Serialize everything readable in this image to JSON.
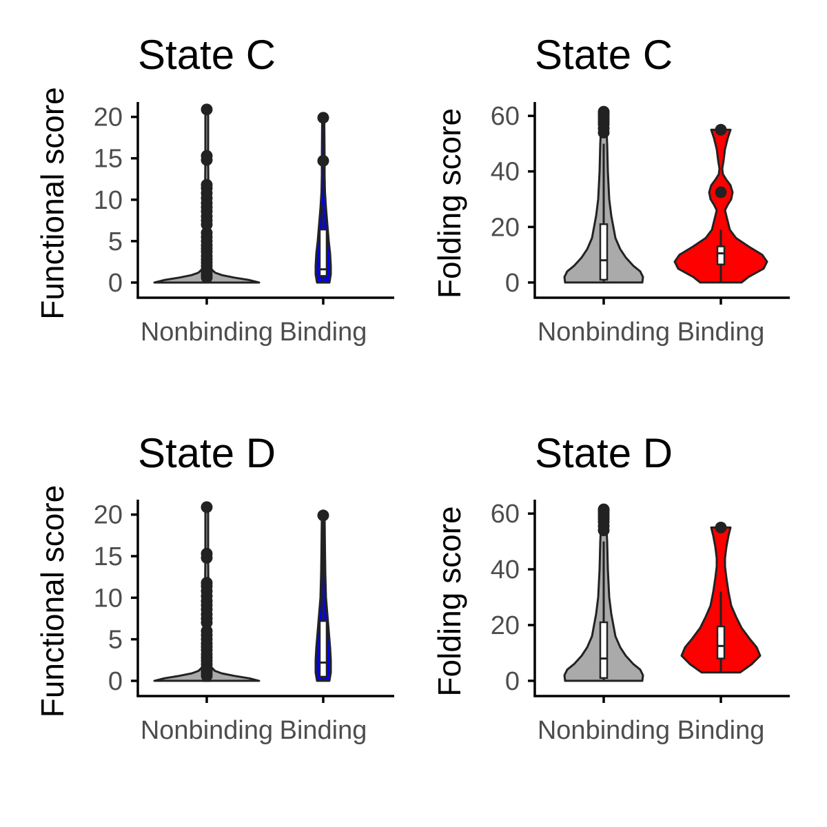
{
  "chart_data": [
    {
      "type": "violin",
      "title": "State C",
      "xlabel": "",
      "ylabel": "Functional score",
      "ylim": [
        -1,
        21.8
      ],
      "yticks": [
        0,
        5,
        10,
        15,
        20
      ],
      "categories": [
        "Nonbinding",
        "Binding"
      ],
      "groups": [
        {
          "category": "Nonbinding",
          "fill": "#aaaaaa",
          "min": 0,
          "q1": 0,
          "median": 0,
          "q3": 0.2,
          "whisker_high": 0.5,
          "max": 20.9,
          "density": [
            [
              0,
              76
            ],
            [
              0.3,
              62
            ],
            [
              0.6,
              40
            ],
            [
              0.9,
              22
            ],
            [
              1.2,
              12
            ],
            [
              1.6,
              7
            ],
            [
              2.5,
              4
            ],
            [
              5,
              3
            ],
            [
              10,
              2.5
            ],
            [
              15,
              2
            ],
            [
              20.9,
              2
            ]
          ],
          "outliers": [
            0.6,
            0.9,
            1.2,
            1.6,
            2.0,
            2.4,
            2.8,
            3.2,
            3.7,
            4.1,
            4.5,
            5.0,
            5.5,
            6.0,
            7.0,
            7.5,
            8.0,
            8.6,
            9.1,
            9.6,
            10.2,
            10.8,
            11.4,
            11.8,
            14.8,
            15.3,
            20.9
          ]
        },
        {
          "category": "Binding",
          "fill": "#0000ff",
          "min": 0,
          "q1": 0.8,
          "median": 1.6,
          "q3": 6.4,
          "whisker_high": 9.4,
          "max": 19.9,
          "density": [
            [
              0,
              9
            ],
            [
              1,
              11
            ],
            [
              2,
              11
            ],
            [
              3.5,
              10
            ],
            [
              5,
              8
            ],
            [
              7,
              6
            ],
            [
              9,
              4
            ],
            [
              11,
              2.5
            ],
            [
              13,
              2
            ],
            [
              15,
              2
            ],
            [
              19.9,
              1.5
            ]
          ],
          "outliers": [
            14.7,
            19.9
          ]
        }
      ]
    },
    {
      "type": "violin",
      "title": "State C",
      "xlabel": "",
      "ylabel": "Folding score",
      "ylim": [
        -3,
        65
      ],
      "yticks": [
        0,
        20,
        40,
        60
      ],
      "categories": [
        "Nonbinding",
        "Binding"
      ],
      "groups": [
        {
          "category": "Nonbinding",
          "fill": "#aaaaaa",
          "min": 0,
          "q1": 1,
          "median": 8,
          "q3": 21,
          "whisker_high": 50,
          "max": 61.5,
          "density": [
            [
              0,
              56
            ],
            [
              2,
              57
            ],
            [
              4,
              53
            ],
            [
              6,
              43
            ],
            [
              9,
              32
            ],
            [
              12,
              24
            ],
            [
              16,
              17
            ],
            [
              20,
              14
            ],
            [
              24,
              11
            ],
            [
              30,
              8
            ],
            [
              40,
              6
            ],
            [
              50,
              5
            ],
            [
              55,
              4
            ],
            [
              58,
              3
            ],
            [
              61.5,
              2
            ]
          ],
          "outliers": [
            54,
            55.5,
            57,
            58,
            59,
            60,
            61,
            61.5
          ]
        },
        {
          "category": "Binding",
          "fill": "#ff0000",
          "min": 0,
          "q1": 6.5,
          "median": 10.5,
          "q3": 13,
          "whisker_high": 19,
          "max": 55,
          "density": [
            [
              0,
              30
            ],
            [
              2,
              40
            ],
            [
              5,
              62
            ],
            [
              7.5,
              67
            ],
            [
              10,
              60
            ],
            [
              13,
              40
            ],
            [
              16,
              22
            ],
            [
              19,
              13
            ],
            [
              23,
              9
            ],
            [
              26,
              6
            ],
            [
              28,
              10
            ],
            [
              30,
              15
            ],
            [
              32.5,
              17
            ],
            [
              35,
              14
            ],
            [
              37,
              8
            ],
            [
              39,
              3
            ],
            [
              41,
              2
            ],
            [
              44,
              4
            ],
            [
              48,
              6
            ],
            [
              52,
              10
            ],
            [
              55,
              14
            ]
          ],
          "outliers": [
            32.5,
            55
          ]
        }
      ]
    },
    {
      "type": "violin",
      "title": "State D",
      "xlabel": "",
      "ylabel": "Functional score",
      "ylim": [
        -1,
        21.8
      ],
      "yticks": [
        0,
        5,
        10,
        15,
        20
      ],
      "categories": [
        "Nonbinding",
        "Binding"
      ],
      "groups": [
        {
          "category": "Nonbinding",
          "fill": "#aaaaaa",
          "min": 0,
          "q1": 0,
          "median": 0,
          "q3": 0.2,
          "whisker_high": 0.5,
          "max": 20.9,
          "density": [
            [
              0,
              76
            ],
            [
              0.3,
              62
            ],
            [
              0.6,
              40
            ],
            [
              0.9,
              22
            ],
            [
              1.2,
              12
            ],
            [
              1.6,
              7
            ],
            [
              2.5,
              4
            ],
            [
              5,
              3
            ],
            [
              10,
              2.5
            ],
            [
              15,
              2
            ],
            [
              20.9,
              2
            ]
          ],
          "outliers": [
            0.6,
            0.9,
            1.2,
            1.6,
            2.0,
            2.4,
            2.8,
            3.2,
            3.7,
            4.1,
            4.5,
            5.0,
            5.5,
            6.0,
            7.0,
            7.5,
            8.0,
            8.6,
            9.1,
            9.6,
            10.2,
            10.8,
            11.4,
            11.8,
            14.8,
            15.3,
            20.9
          ]
        },
        {
          "category": "Binding",
          "fill": "#0000ff",
          "min": 0,
          "q1": 0.5,
          "median": 2.2,
          "q3": 7.2,
          "whisker_high": 19.9,
          "max": 19.9,
          "density": [
            [
              0,
              9
            ],
            [
              1,
              11
            ],
            [
              2.5,
              11
            ],
            [
              4,
              10
            ],
            [
              6,
              8
            ],
            [
              8,
              6
            ],
            [
              10,
              4
            ],
            [
              13,
              3
            ],
            [
              16,
              2.5
            ],
            [
              19.9,
              2
            ]
          ],
          "outliers": [
            19.9
          ]
        }
      ]
    },
    {
      "type": "violin",
      "title": "State D",
      "xlabel": "",
      "ylabel": "Folding score",
      "ylim": [
        -3,
        65
      ],
      "yticks": [
        0,
        20,
        40,
        60
      ],
      "categories": [
        "Nonbinding",
        "Binding"
      ],
      "groups": [
        {
          "category": "Nonbinding",
          "fill": "#aaaaaa",
          "min": 0,
          "q1": 1,
          "median": 8,
          "q3": 21,
          "whisker_high": 50,
          "max": 61.5,
          "density": [
            [
              0,
              56
            ],
            [
              2,
              57
            ],
            [
              4,
              53
            ],
            [
              6,
              43
            ],
            [
              9,
              32
            ],
            [
              12,
              24
            ],
            [
              16,
              17
            ],
            [
              20,
              14
            ],
            [
              24,
              11
            ],
            [
              30,
              8
            ],
            [
              40,
              6
            ],
            [
              50,
              5
            ],
            [
              55,
              4
            ],
            [
              58,
              3
            ],
            [
              61.5,
              2
            ]
          ],
          "outliers": [
            54,
            55.5,
            57,
            58,
            59,
            60,
            61,
            61.5
          ]
        },
        {
          "category": "Binding",
          "fill": "#ff0000",
          "min": 3,
          "q1": 8,
          "median": 12.5,
          "q3": 19.5,
          "whisker_high": 32,
          "max": 55,
          "density": [
            [
              3,
              28
            ],
            [
              6,
              45
            ],
            [
              9,
              57
            ],
            [
              12,
              52
            ],
            [
              15,
              42
            ],
            [
              19,
              30
            ],
            [
              23,
              22
            ],
            [
              27,
              15
            ],
            [
              32,
              11
            ],
            [
              37,
              8
            ],
            [
              41,
              6
            ],
            [
              44,
              6
            ],
            [
              48,
              8
            ],
            [
              52,
              11
            ],
            [
              55,
              14
            ]
          ],
          "outliers": [
            55
          ]
        }
      ]
    }
  ]
}
